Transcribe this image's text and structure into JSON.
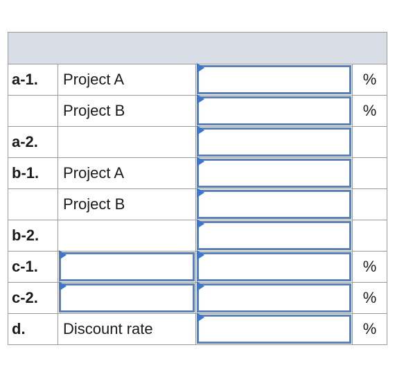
{
  "rows": [
    {
      "part": "a-1.",
      "desc": "Project A",
      "desc_is_input": false,
      "unit": "%"
    },
    {
      "part": "",
      "desc": "Project B",
      "desc_is_input": false,
      "unit": "%"
    },
    {
      "part": "a-2.",
      "desc": "",
      "desc_is_input": false,
      "unit": ""
    },
    {
      "part": "b-1.",
      "desc": "Project A",
      "desc_is_input": false,
      "unit": ""
    },
    {
      "part": "",
      "desc": "Project B",
      "desc_is_input": false,
      "unit": ""
    },
    {
      "part": "b-2.",
      "desc": "",
      "desc_is_input": false,
      "unit": ""
    },
    {
      "part": "c-1.",
      "desc": "",
      "desc_is_input": true,
      "unit": "%"
    },
    {
      "part": "c-2.",
      "desc": "",
      "desc_is_input": true,
      "unit": "%"
    },
    {
      "part": "d.",
      "desc": "Discount rate",
      "desc_is_input": false,
      "unit": "%"
    }
  ],
  "colors": {
    "header_bg": "#d9dde6",
    "input_border": "#5b7fb6",
    "flag": "#3f76c9",
    "grid": "#9a9a9a"
  }
}
